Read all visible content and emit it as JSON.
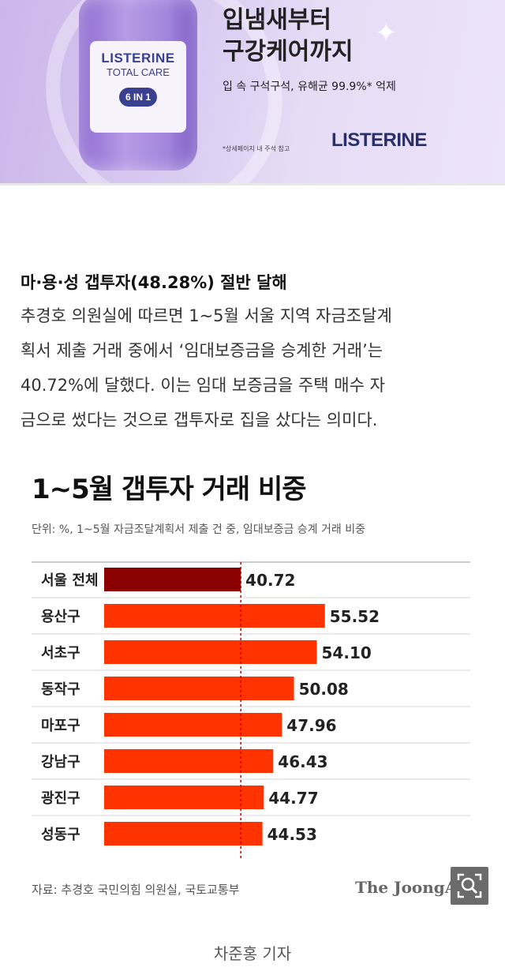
{
  "ad": {
    "bottle_brand": "LISTERINE",
    "bottle_sub": "TOTAL CARE",
    "bottle_badge": "6 IN 1",
    "headline_line1": "입냄새부터",
    "headline_line2": "구강케어까지",
    "subtext": "입 속 구석구석, 유해균 99.9%* 억제",
    "note": "*상세페이지 내 주석 참고",
    "logo": "LISTERINE",
    "accent": "#b79be6"
  },
  "article": {
    "heading": "마·용·성 갭투자(48.28%) 절반 달해",
    "lines": [
      "추경호 의원실에 따르면 1~5월 서울 지역 자금조달계",
      "획서 제출 거래 중에서 ‘임대보증금을 승계한 거래’는",
      "40.72%에 달했다. 이는 임대 보증금을 주택 매수 자",
      "금으로 썼다는 것으로 갭투자로 집을 샀다는 의미다."
    ]
  },
  "chart": {
    "title": "1~5월 갭투자 거래 비중",
    "unit": "단위: %, 1~5월 자금조달계획서 제출 건 중, 임대보증금 승계 거래 비중",
    "source": "자료: 추경호 국민의힘 의원실, 국토교통부",
    "credit": "The JoongAng"
  },
  "chart_data": {
    "type": "bar",
    "orientation": "horizontal",
    "categories": [
      "서울 전체",
      "용산구",
      "서초구",
      "동작구",
      "마포구",
      "강남구",
      "광진구",
      "성동구"
    ],
    "values": [
      40.72,
      55.52,
      54.1,
      50.08,
      47.96,
      46.43,
      44.77,
      44.53
    ],
    "value_labels": [
      "40.72",
      "55.52",
      "54.10",
      "50.08",
      "47.96",
      "46.43",
      "44.77",
      "44.53"
    ],
    "highlight_color": "#8b0000",
    "bar_color": "#ff3300",
    "reference_line": 40.72
  },
  "zoom_icon": "zoom-magnifier-icon",
  "reporter": "차준홍 기자"
}
